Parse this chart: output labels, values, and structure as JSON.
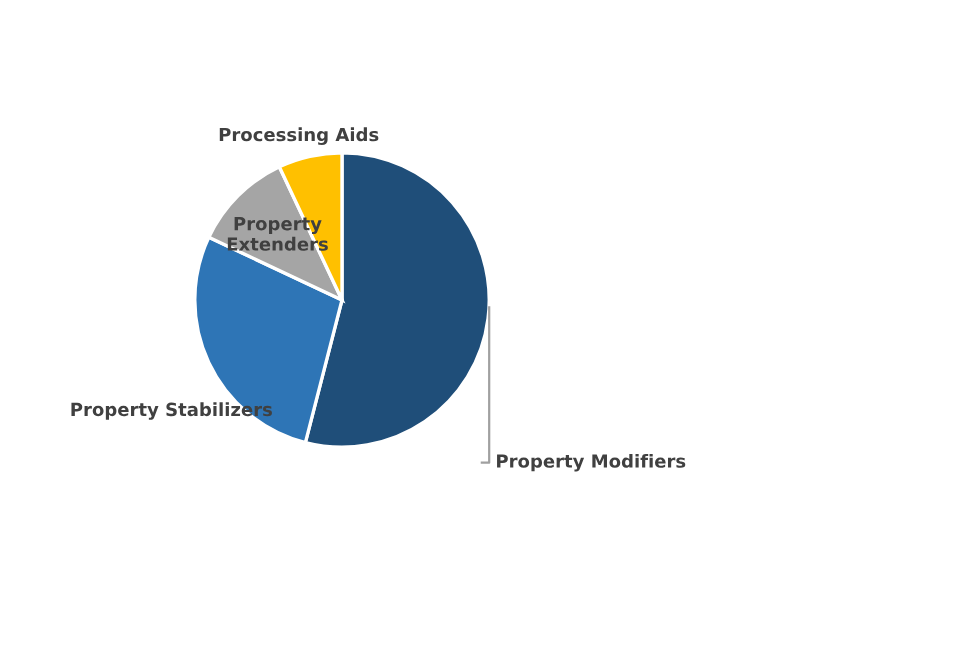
{
  "chart_data": {
    "type": "pie",
    "categories": [
      "Property Modifiers",
      "Property Stabilizers",
      "Property Extenders",
      "Processing Aids"
    ],
    "values": [
      54,
      28,
      11,
      7
    ],
    "colors": [
      "#1f4e79",
      "#2e75b6",
      "#a5a5a5",
      "#ffc000"
    ]
  }
}
